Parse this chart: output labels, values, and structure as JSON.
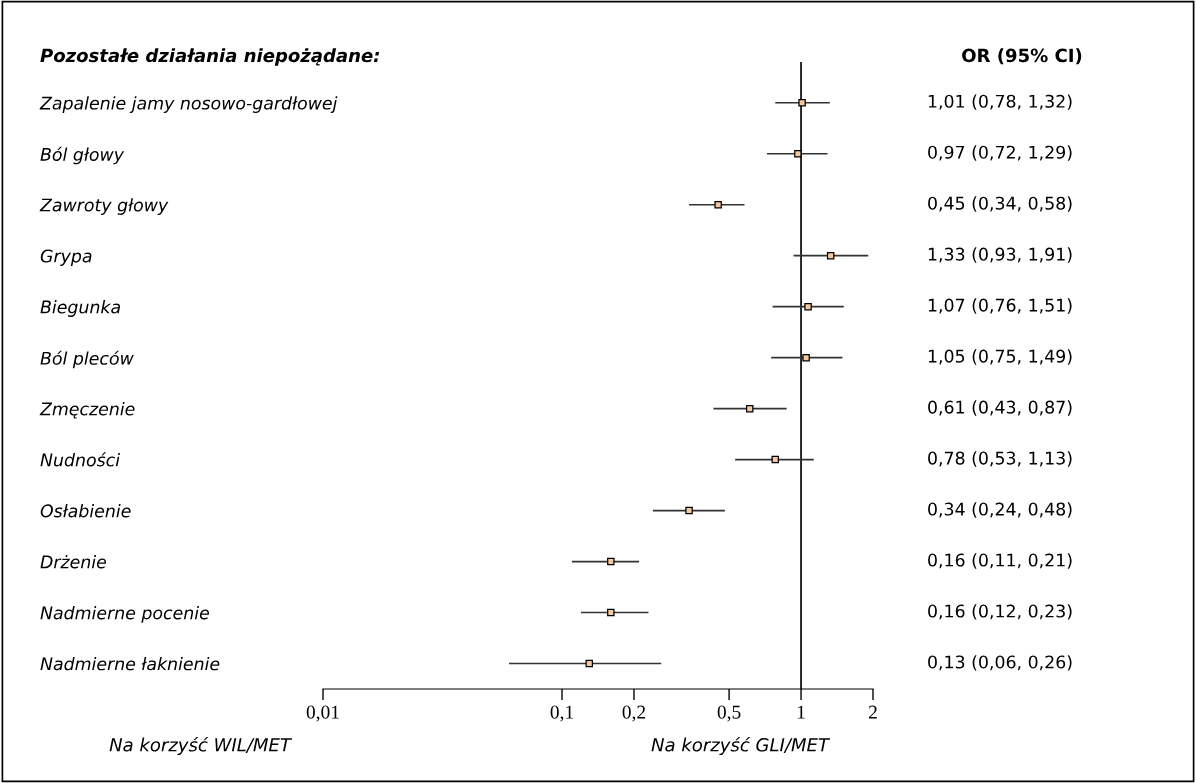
{
  "chart_data": {
    "type": "scatter",
    "orientation": "horizontal",
    "title": "Pozostałe działania niepożądane:",
    "categories": [
      "Zapalenie jamy nosowo-gardłowej",
      "Ból głowy",
      "Zawroty głowy",
      "Grypa",
      "Biegunka",
      "Ból pleców",
      "Zmęczenie",
      "Nudności",
      "Osłabienie",
      "Drżenie",
      "Nadmierne pocenie",
      "Nadmierne łaknienie"
    ],
    "color": "#f5c9a0",
    "values": [
      1.01,
      0.97,
      0.45,
      1.33,
      1.07,
      1.05,
      0.61,
      0.78,
      0.34,
      0.16,
      0.16,
      0.13
    ],
    "errors": [
      [
        0.78,
        1.32
      ],
      [
        0.72,
        1.29
      ],
      [
        0.34,
        0.58
      ],
      [
        0.93,
        1.91
      ],
      [
        0.76,
        1.51
      ],
      [
        0.75,
        1.49
      ],
      [
        0.43,
        0.87
      ],
      [
        0.53,
        1.13
      ],
      [
        0.24,
        0.48
      ],
      [
        0.11,
        0.21
      ],
      [
        0.12,
        0.23
      ],
      [
        0.06,
        0.26
      ]
    ],
    "value_labels": [
      "1,01 (0,78, 1,32)",
      "0,97 (0,72, 1,29)",
      "0,45 (0,34, 0,58)",
      "1,33 (0,93, 1,91)",
      "1,07 (0,76, 1,51)",
      "1,05 (0,75, 1,49)",
      "0,61 (0,43, 0,87)",
      "0,78 (0,53, 1,13)",
      "0,34 (0,24, 0,48)",
      "0,16 (0,11, 0,21)",
      "0,16 (0,12, 0,23)",
      "0,13 (0,06, 0,26)"
    ],
    "marker": "square",
    "log": "x",
    "xlim": [
      0.01,
      2
    ],
    "xticks": [
      {
        "value": 0.01,
        "label": "0,01"
      },
      {
        "value": 0.1,
        "label": "0,1"
      },
      {
        "value": 0.2,
        "label": "0,2"
      },
      {
        "value": 0.5,
        "label": "0,5"
      },
      {
        "value": 1,
        "label": "1"
      },
      {
        "value": 2,
        "label": "2"
      }
    ],
    "ref_lines": [
      {
        "axis": "x",
        "value": 1,
        "color": "#000000"
      }
    ],
    "grid": false,
    "legend": false,
    "annotations": [
      "OR (95% CI)",
      "Na korzyść WIL/MET",
      "Na korzyść GLI/MET"
    ]
  }
}
